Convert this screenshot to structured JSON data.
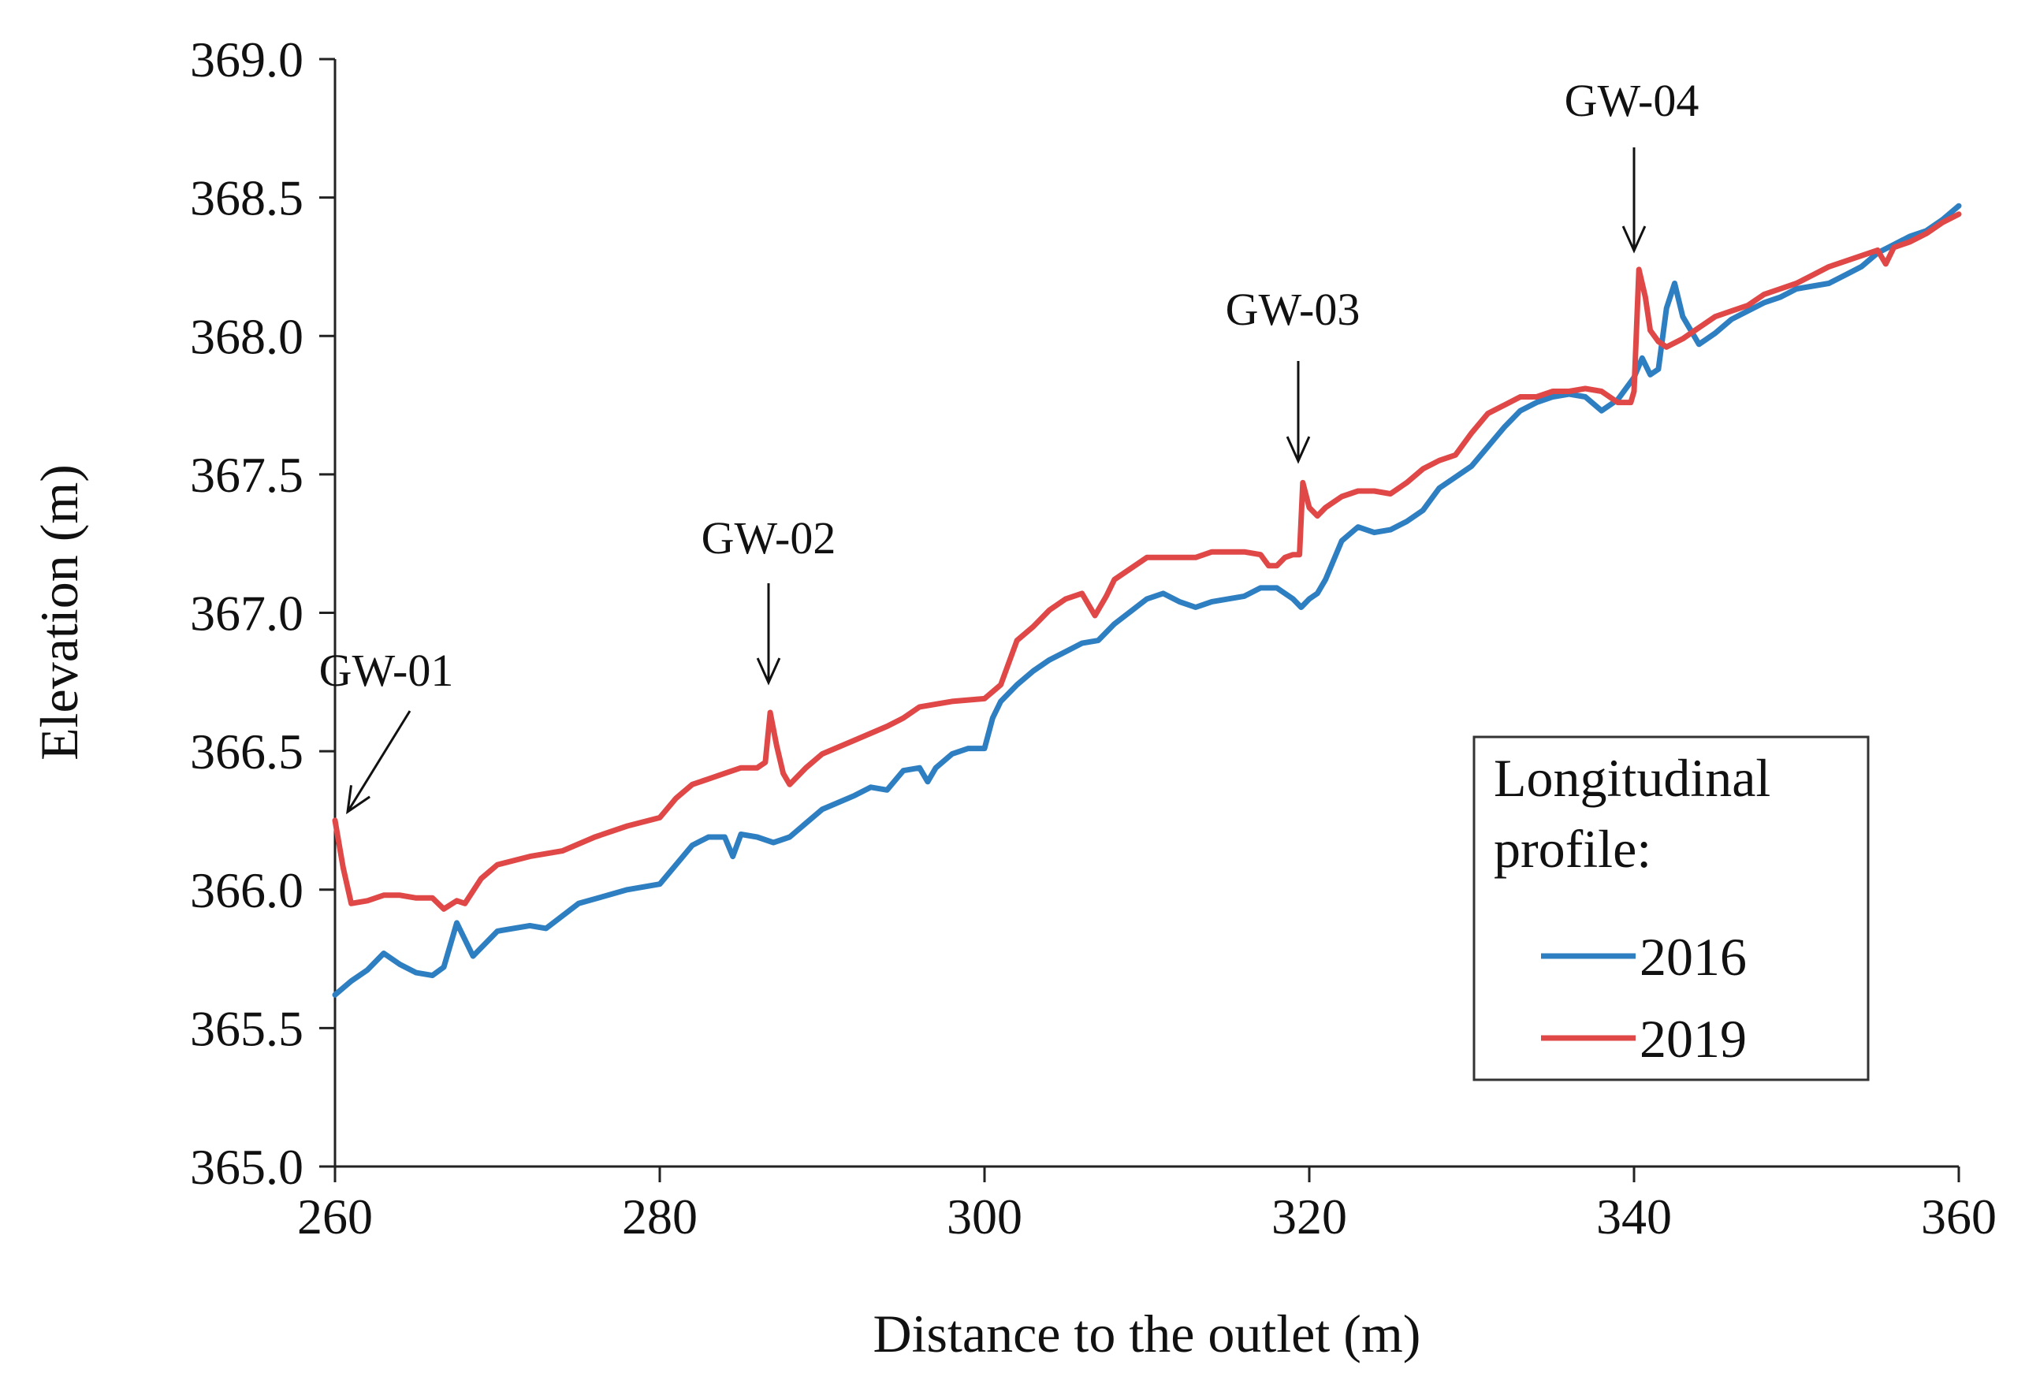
{
  "chart_data": {
    "type": "line",
    "title": "",
    "xlabel": "Distance to the outlet (m)",
    "ylabel": "Elevation (m)",
    "xlim": [
      260,
      360
    ],
    "ylim": [
      365.0,
      369.0
    ],
    "xticks": [
      260,
      280,
      300,
      320,
      340,
      360
    ],
    "xtick_labels": [
      "260",
      "280",
      "300",
      "320",
      "340",
      "360"
    ],
    "yticks": [
      365.0,
      365.5,
      366.0,
      366.5,
      367.0,
      367.5,
      368.0,
      368.5,
      369.0
    ],
    "ytick_labels": [
      "365.0",
      "365.5",
      "366.0",
      "366.5",
      "367.0",
      "367.5",
      "368.0",
      "368.5",
      "369.0"
    ],
    "grid": false,
    "legend": {
      "title_line1": "Longitudinal",
      "title_line2": "profile:",
      "placement": "bottom-right"
    },
    "series": [
      {
        "name": "2016",
        "color": "#2E7FC2",
        "x": [
          260,
          261,
          262,
          263,
          264,
          265,
          266,
          266.7,
          267.5,
          268,
          268.5,
          270,
          272,
          273,
          275,
          278,
          280,
          281,
          282,
          283,
          284,
          284.5,
          285,
          286,
          287,
          288,
          290,
          292,
          293,
          294,
          295,
          296,
          296.5,
          297,
          298,
          299,
          300,
          300.5,
          301,
          302,
          303,
          304,
          305,
          306,
          307,
          308,
          310,
          311,
          312,
          313,
          314,
          316,
          317,
          318,
          319,
          319.5,
          320,
          320.5,
          321,
          322,
          323,
          324,
          325,
          326,
          327,
          328,
          329,
          330,
          331,
          332,
          333,
          334,
          335,
          336,
          337,
          338,
          339,
          340,
          340.5,
          341,
          341.5,
          342,
          342.5,
          343,
          344,
          345,
          346,
          347,
          348,
          349,
          350,
          351,
          352,
          353,
          354,
          355,
          356,
          357,
          358,
          359,
          360
        ],
        "values": [
          365.62,
          365.67,
          365.71,
          365.77,
          365.73,
          365.7,
          365.69,
          365.72,
          365.88,
          365.82,
          365.76,
          365.85,
          365.87,
          365.86,
          365.95,
          366.0,
          366.02,
          366.09,
          366.16,
          366.19,
          366.19,
          366.12,
          366.2,
          366.19,
          366.17,
          366.19,
          366.29,
          366.34,
          366.37,
          366.36,
          366.43,
          366.44,
          366.39,
          366.44,
          366.49,
          366.51,
          366.51,
          366.62,
          366.68,
          366.74,
          366.79,
          366.83,
          366.86,
          366.89,
          366.9,
          366.96,
          367.05,
          367.07,
          367.04,
          367.02,
          367.04,
          367.06,
          367.09,
          367.09,
          367.05,
          367.02,
          367.05,
          367.07,
          367.12,
          367.26,
          367.31,
          367.29,
          367.3,
          367.33,
          367.37,
          367.45,
          367.49,
          367.53,
          367.6,
          367.67,
          367.73,
          367.76,
          367.78,
          367.79,
          367.78,
          367.73,
          367.77,
          367.85,
          367.92,
          367.86,
          367.88,
          368.1,
          368.19,
          368.07,
          367.97,
          368.01,
          368.06,
          368.09,
          368.12,
          368.14,
          368.17,
          368.18,
          368.19,
          368.22,
          368.25,
          368.3,
          368.33,
          368.36,
          368.38,
          368.42,
          368.47
        ]
      },
      {
        "name": "2019",
        "color": "#E04848",
        "x": [
          260,
          260.5,
          261,
          262,
          263,
          264,
          265,
          266,
          266.7,
          267.5,
          268,
          269,
          270,
          272,
          274,
          276,
          278,
          280,
          281,
          282,
          283,
          284,
          285,
          286,
          286.5,
          286.8,
          287.2,
          287.6,
          288,
          289,
          290,
          292,
          294,
          295,
          296,
          298,
          300,
          301,
          302,
          303,
          304,
          305,
          306,
          306.8,
          307.5,
          308,
          309,
          310,
          311,
          312,
          313,
          314,
          316,
          317,
          317.5,
          318,
          318.5,
          319,
          319.4,
          319.6,
          320,
          320.5,
          321,
          322,
          323,
          324,
          325,
          326,
          327,
          328,
          329,
          330,
          331,
          332,
          333,
          334,
          335,
          336,
          337,
          338,
          339,
          339.8,
          340,
          340.3,
          340.7,
          341,
          341.5,
          342,
          343,
          344,
          345,
          346,
          347,
          348,
          349,
          350,
          351,
          352,
          353,
          354,
          355,
          355.5,
          356,
          357,
          358,
          359,
          360
        ],
        "values": [
          366.25,
          366.08,
          365.95,
          365.96,
          365.98,
          365.98,
          365.97,
          365.97,
          365.93,
          365.96,
          365.95,
          366.04,
          366.09,
          366.12,
          366.14,
          366.19,
          366.23,
          366.26,
          366.33,
          366.38,
          366.4,
          366.42,
          366.44,
          366.44,
          366.46,
          366.64,
          366.52,
          366.42,
          366.38,
          366.44,
          366.49,
          366.54,
          366.59,
          366.62,
          366.66,
          366.68,
          366.69,
          366.74,
          366.9,
          366.95,
          367.01,
          367.05,
          367.07,
          366.99,
          367.06,
          367.12,
          367.16,
          367.2,
          367.2,
          367.2,
          367.2,
          367.22,
          367.22,
          367.21,
          367.17,
          367.17,
          367.2,
          367.21,
          367.21,
          367.47,
          367.38,
          367.35,
          367.38,
          367.42,
          367.44,
          367.44,
          367.43,
          367.47,
          367.52,
          367.55,
          367.57,
          367.65,
          367.72,
          367.75,
          367.78,
          367.78,
          367.8,
          367.8,
          367.81,
          367.8,
          367.76,
          367.76,
          367.8,
          368.24,
          368.14,
          368.02,
          367.98,
          367.96,
          367.99,
          368.03,
          368.07,
          368.09,
          368.11,
          368.15,
          368.17,
          368.19,
          368.22,
          368.25,
          368.27,
          368.29,
          368.31,
          368.26,
          368.32,
          368.34,
          368.37,
          368.41,
          368.44
        ]
      }
    ],
    "annotations": [
      {
        "label": "GW-01",
        "x": 260.8,
        "y": 366.25
      },
      {
        "label": "GW-02",
        "x": 286.6,
        "y": 366.72
      },
      {
        "label": "GW-03",
        "x": 319.6,
        "y": 367.53
      },
      {
        "label": "GW-04",
        "x": 340.2,
        "y": 368.3
      }
    ]
  }
}
